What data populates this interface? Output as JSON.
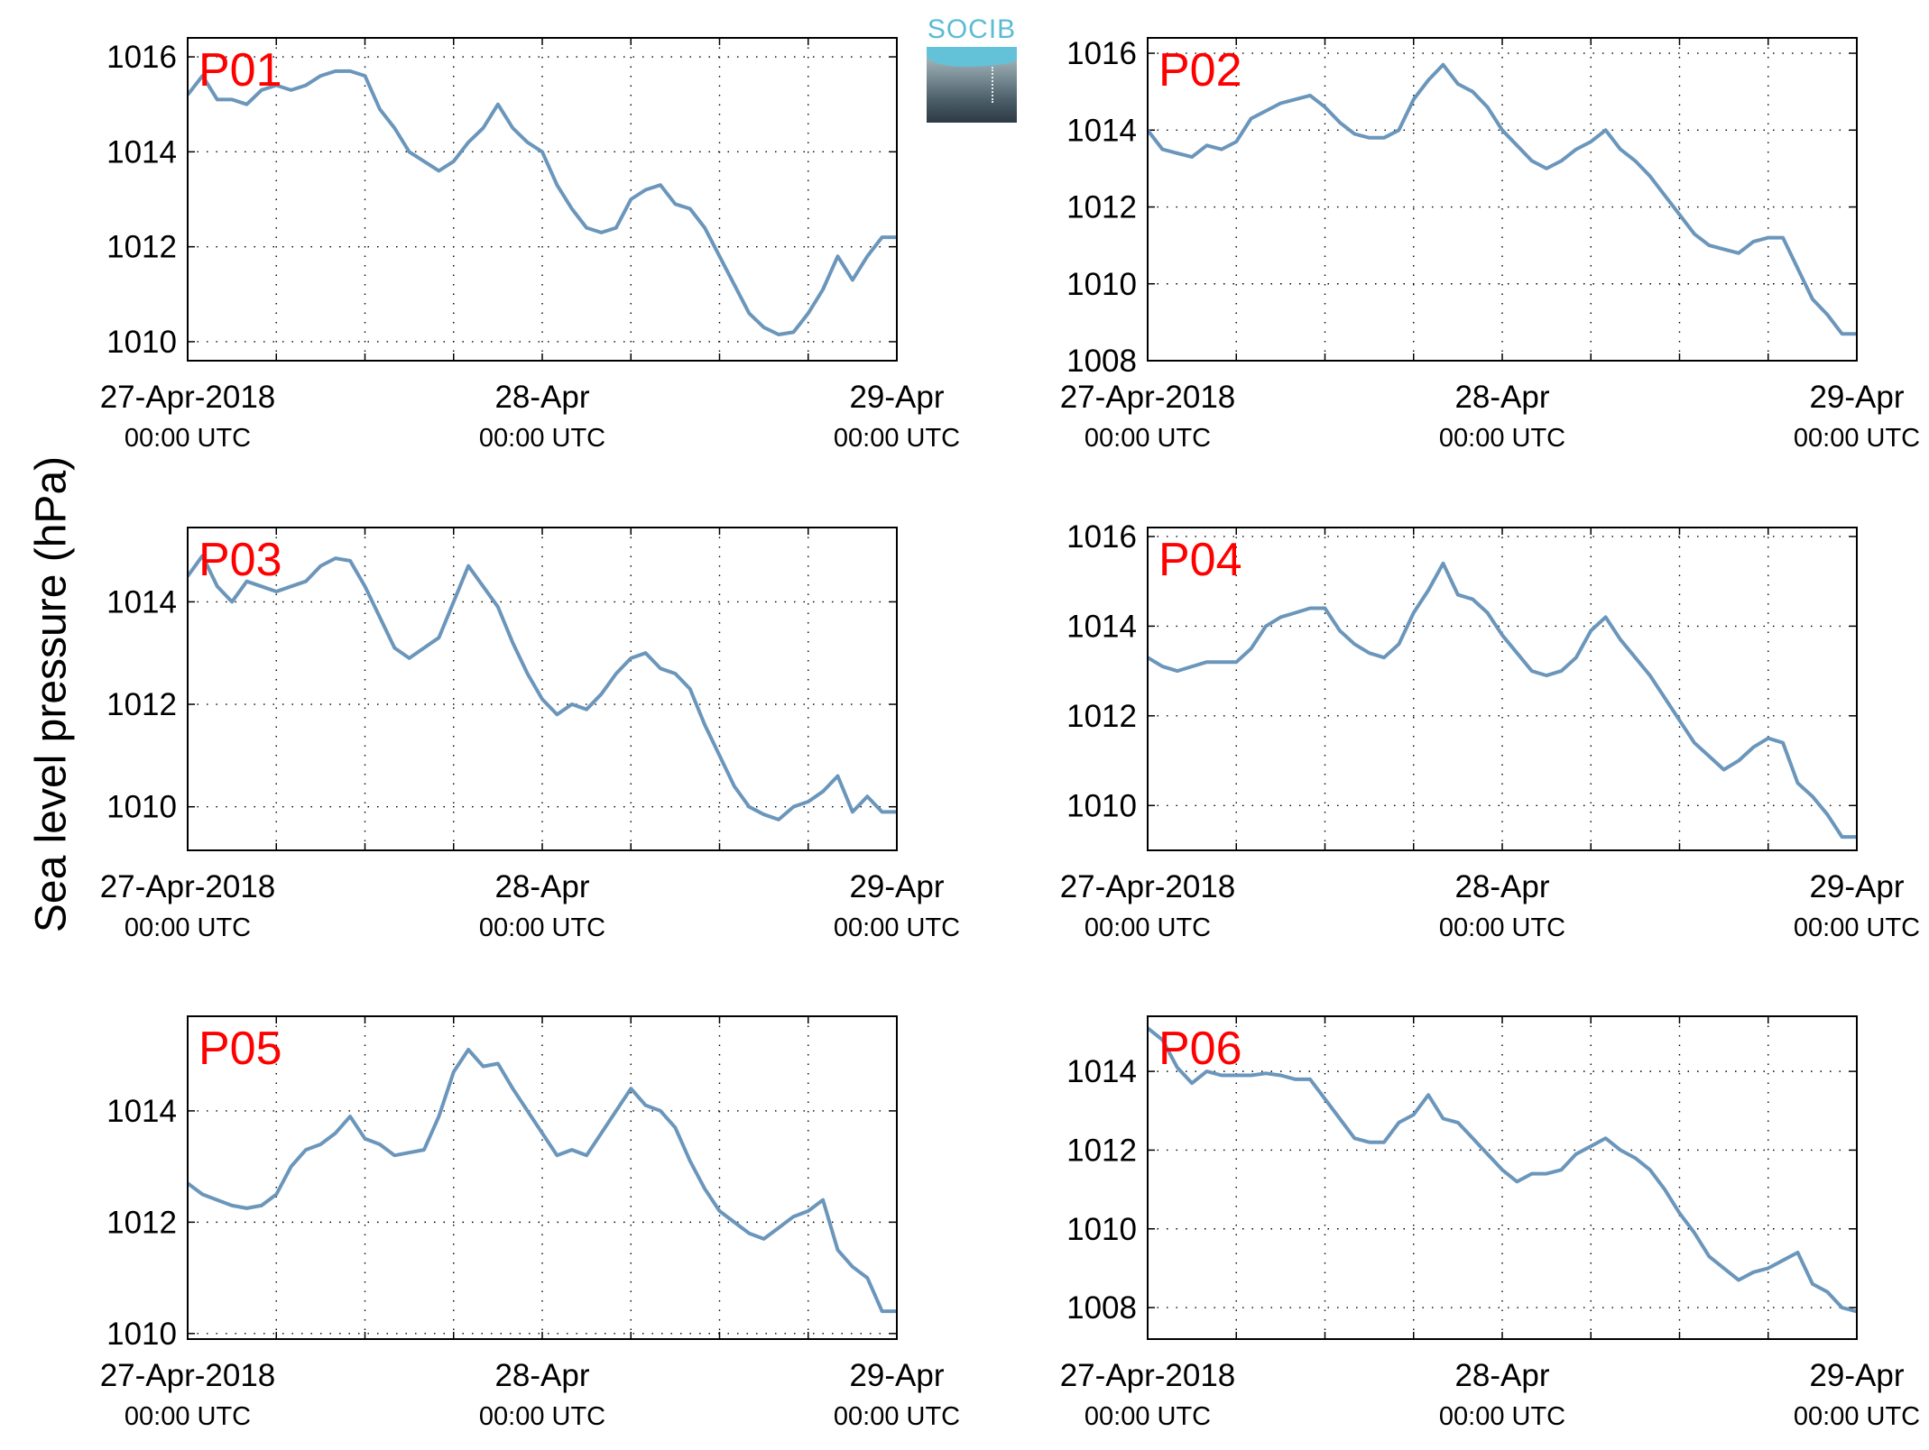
{
  "figure": {
    "ylabel": "Sea level pressure (hPa)",
    "logo_text": "SOCIB"
  },
  "chart_data": [
    {
      "type": "line",
      "label": "P01",
      "x_range": [
        "2018-04-27 00:00",
        "2018-04-29 00:00"
      ],
      "x_ticks": [
        {
          "pos": 0,
          "line1": "27-Apr-2018",
          "line2": "00:00 UTC"
        },
        {
          "pos": 24,
          "line1": "28-Apr",
          "line2": "00:00 UTC"
        },
        {
          "pos": 48,
          "line1": "29-Apr",
          "line2": "00:00 UTC"
        }
      ],
      "x_minor_step_hours": 6,
      "ylim": [
        1009.6,
        1016.4
      ],
      "yticks": [
        1010,
        1012,
        1014,
        1016
      ],
      "grid": true,
      "x_hours": [
        0,
        1,
        2,
        3,
        4,
        5,
        6,
        7,
        8,
        9,
        10,
        11,
        12,
        13,
        14,
        15,
        16,
        17,
        18,
        19,
        20,
        21,
        22,
        23,
        24,
        25,
        26,
        27,
        28,
        29,
        30,
        31,
        32,
        33,
        34,
        35,
        36,
        37,
        38,
        39,
        40,
        41,
        42,
        43,
        44,
        45,
        46,
        47,
        48
      ],
      "y": [
        1015.2,
        1015.6,
        1015.1,
        1015.1,
        1015.0,
        1015.3,
        1015.4,
        1015.3,
        1015.4,
        1015.6,
        1015.7,
        1015.7,
        1015.6,
        1014.9,
        1014.5,
        1014.0,
        1013.8,
        1013.6,
        1013.8,
        1014.2,
        1014.5,
        1015.0,
        1014.5,
        1014.2,
        1014.0,
        1013.3,
        1012.8,
        1012.4,
        1012.3,
        1012.4,
        1013.0,
        1013.2,
        1013.3,
        1012.9,
        1012.8,
        1012.4,
        1011.8,
        1011.2,
        1010.6,
        1010.3,
        1010.15,
        1010.2,
        1010.6,
        1011.1,
        1011.8,
        1011.3,
        1011.8,
        1012.2,
        1012.2
      ]
    },
    {
      "type": "line",
      "label": "P02",
      "x_range": [
        "2018-04-27 00:00",
        "2018-04-29 00:00"
      ],
      "x_ticks": [
        {
          "pos": 0,
          "line1": "27-Apr-2018",
          "line2": "00:00 UTC"
        },
        {
          "pos": 24,
          "line1": "28-Apr",
          "line2": "00:00 UTC"
        },
        {
          "pos": 48,
          "line1": "29-Apr",
          "line2": "00:00 UTC"
        }
      ],
      "x_minor_step_hours": 6,
      "ylim": [
        1008.0,
        1016.4
      ],
      "yticks": [
        1008,
        1010,
        1012,
        1014,
        1016
      ],
      "grid": true,
      "x_hours": [
        0,
        1,
        2,
        3,
        4,
        5,
        6,
        7,
        8,
        9,
        10,
        11,
        12,
        13,
        14,
        15,
        16,
        17,
        18,
        19,
        20,
        21,
        22,
        23,
        24,
        25,
        26,
        27,
        28,
        29,
        30,
        31,
        32,
        33,
        34,
        35,
        36,
        37,
        38,
        39,
        40,
        41,
        42,
        43,
        44,
        45,
        46,
        47,
        48
      ],
      "y": [
        1014.0,
        1013.5,
        1013.4,
        1013.3,
        1013.6,
        1013.5,
        1013.7,
        1014.3,
        1014.5,
        1014.7,
        1014.8,
        1014.9,
        1014.6,
        1014.2,
        1013.9,
        1013.8,
        1013.8,
        1014.0,
        1014.8,
        1015.3,
        1015.7,
        1015.2,
        1015.0,
        1014.6,
        1014.0,
        1013.6,
        1013.2,
        1013.0,
        1013.2,
        1013.5,
        1013.7,
        1014.0,
        1013.5,
        1013.2,
        1012.8,
        1012.3,
        1011.8,
        1011.3,
        1011.0,
        1010.9,
        1010.8,
        1011.1,
        1011.2,
        1011.2,
        1010.4,
        1009.6,
        1009.2,
        1008.7,
        1008.7
      ]
    },
    {
      "type": "line",
      "label": "P03",
      "x_range": [
        "2018-04-27 00:00",
        "2018-04-29 00:00"
      ],
      "x_ticks": [
        {
          "pos": 0,
          "line1": "27-Apr-2018",
          "line2": "00:00 UTC"
        },
        {
          "pos": 24,
          "line1": "28-Apr",
          "line2": "00:00 UTC"
        },
        {
          "pos": 48,
          "line1": "29-Apr",
          "line2": "00:00 UTC"
        }
      ],
      "x_minor_step_hours": 6,
      "ylim": [
        1009.15,
        1015.45
      ],
      "yticks": [
        1010,
        1012,
        1014
      ],
      "grid": true,
      "x_hours": [
        0,
        1,
        2,
        3,
        4,
        5,
        6,
        7,
        8,
        9,
        10,
        11,
        12,
        13,
        14,
        15,
        16,
        17,
        18,
        19,
        20,
        21,
        22,
        23,
        24,
        25,
        26,
        27,
        28,
        29,
        30,
        31,
        32,
        33,
        34,
        35,
        36,
        37,
        38,
        39,
        40,
        41,
        42,
        43,
        44,
        45,
        46,
        47,
        48
      ],
      "y": [
        1014.5,
        1014.9,
        1014.3,
        1014.0,
        1014.4,
        1014.3,
        1014.2,
        1014.3,
        1014.4,
        1014.7,
        1014.85,
        1014.8,
        1014.3,
        1013.7,
        1013.1,
        1012.9,
        1013.1,
        1013.3,
        1014.0,
        1014.7,
        1014.3,
        1013.9,
        1013.2,
        1012.6,
        1012.1,
        1011.8,
        1012.0,
        1011.9,
        1012.2,
        1012.6,
        1012.9,
        1013.0,
        1012.7,
        1012.6,
        1012.3,
        1011.6,
        1011.0,
        1010.4,
        1010.0,
        1009.85,
        1009.75,
        1010.0,
        1010.1,
        1010.3,
        1010.6,
        1009.9,
        1010.2,
        1009.9,
        1009.9
      ]
    },
    {
      "type": "line",
      "label": "P04",
      "x_range": [
        "2018-04-27 00:00",
        "2018-04-29 00:00"
      ],
      "x_ticks": [
        {
          "pos": 0,
          "line1": "27-Apr-2018",
          "line2": "00:00 UTC"
        },
        {
          "pos": 24,
          "line1": "28-Apr",
          "line2": "00:00 UTC"
        },
        {
          "pos": 48,
          "line1": "29-Apr",
          "line2": "00:00 UTC"
        }
      ],
      "x_minor_step_hours": 6,
      "ylim": [
        1009.0,
        1016.2
      ],
      "yticks": [
        1010,
        1012,
        1014,
        1016
      ],
      "grid": true,
      "x_hours": [
        0,
        1,
        2,
        3,
        4,
        5,
        6,
        7,
        8,
        9,
        10,
        11,
        12,
        13,
        14,
        15,
        16,
        17,
        18,
        19,
        20,
        21,
        22,
        23,
        24,
        25,
        26,
        27,
        28,
        29,
        30,
        31,
        32,
        33,
        34,
        35,
        36,
        37,
        38,
        39,
        40,
        41,
        42,
        43,
        44,
        45,
        46,
        47,
        48
      ],
      "y": [
        1013.3,
        1013.1,
        1013.0,
        1013.1,
        1013.2,
        1013.2,
        1013.2,
        1013.5,
        1014.0,
        1014.2,
        1014.3,
        1014.4,
        1014.4,
        1013.9,
        1013.6,
        1013.4,
        1013.3,
        1013.6,
        1014.3,
        1014.8,
        1015.4,
        1014.7,
        1014.6,
        1014.3,
        1013.8,
        1013.4,
        1013.0,
        1012.9,
        1013.0,
        1013.3,
        1013.9,
        1014.2,
        1013.7,
        1013.3,
        1012.9,
        1012.4,
        1011.9,
        1011.4,
        1011.1,
        1010.8,
        1011.0,
        1011.3,
        1011.5,
        1011.4,
        1010.5,
        1010.2,
        1009.8,
        1009.3,
        1009.3
      ]
    },
    {
      "type": "line",
      "label": "P05",
      "x_range": [
        "2018-04-27 00:00",
        "2018-04-29 00:00"
      ],
      "x_ticks": [
        {
          "pos": 0,
          "line1": "27-Apr-2018",
          "line2": "00:00 UTC"
        },
        {
          "pos": 24,
          "line1": "28-Apr",
          "line2": "00:00 UTC"
        },
        {
          "pos": 48,
          "line1": "29-Apr",
          "line2": "00:00 UTC"
        }
      ],
      "x_minor_step_hours": 6,
      "ylim": [
        1009.9,
        1015.7
      ],
      "yticks": [
        1010,
        1012,
        1014
      ],
      "grid": true,
      "x_hours": [
        0,
        1,
        2,
        3,
        4,
        5,
        6,
        7,
        8,
        9,
        10,
        11,
        12,
        13,
        14,
        15,
        16,
        17,
        18,
        19,
        20,
        21,
        22,
        23,
        24,
        25,
        26,
        27,
        28,
        29,
        30,
        31,
        32,
        33,
        34,
        35,
        36,
        37,
        38,
        39,
        40,
        41,
        42,
        43,
        44,
        45,
        46,
        47,
        48
      ],
      "y": [
        1012.7,
        1012.5,
        1012.4,
        1012.3,
        1012.25,
        1012.3,
        1012.5,
        1013.0,
        1013.3,
        1013.4,
        1013.6,
        1013.9,
        1013.5,
        1013.4,
        1013.2,
        1013.25,
        1013.3,
        1013.9,
        1014.7,
        1015.1,
        1014.8,
        1014.85,
        1014.4,
        1014.0,
        1013.6,
        1013.2,
        1013.3,
        1013.2,
        1013.6,
        1014.0,
        1014.4,
        1014.1,
        1014.0,
        1013.7,
        1013.1,
        1012.6,
        1012.2,
        1012.0,
        1011.8,
        1011.7,
        1011.9,
        1012.1,
        1012.2,
        1012.4,
        1011.5,
        1011.2,
        1011.0,
        1010.4,
        1010.4
      ]
    },
    {
      "type": "line",
      "label": "P06",
      "x_range": [
        "2018-04-27 00:00",
        "2018-04-29 00:00"
      ],
      "x_ticks": [
        {
          "pos": 0,
          "line1": "27-Apr-2018",
          "line2": "00:00 UTC"
        },
        {
          "pos": 24,
          "line1": "28-Apr",
          "line2": "00:00 UTC"
        },
        {
          "pos": 48,
          "line1": "29-Apr",
          "line2": "00:00 UTC"
        }
      ],
      "x_minor_step_hours": 6,
      "ylim": [
        1007.2,
        1015.4
      ],
      "yticks": [
        1008,
        1010,
        1012,
        1014
      ],
      "grid": true,
      "x_hours": [
        0,
        1,
        2,
        3,
        4,
        5,
        6,
        7,
        8,
        9,
        10,
        11,
        12,
        13,
        14,
        15,
        16,
        17,
        18,
        19,
        20,
        21,
        22,
        23,
        24,
        25,
        26,
        27,
        28,
        29,
        30,
        31,
        32,
        33,
        34,
        35,
        36,
        37,
        38,
        39,
        40,
        41,
        42,
        43,
        44,
        45,
        46,
        47,
        48
      ],
      "y": [
        1015.1,
        1014.8,
        1014.1,
        1013.7,
        1014.0,
        1013.9,
        1013.9,
        1013.9,
        1013.95,
        1013.9,
        1013.8,
        1013.8,
        1013.3,
        1012.8,
        1012.3,
        1012.2,
        1012.2,
        1012.7,
        1012.9,
        1013.4,
        1012.8,
        1012.7,
        1012.3,
        1011.9,
        1011.5,
        1011.2,
        1011.4,
        1011.4,
        1011.5,
        1011.9,
        1012.1,
        1012.3,
        1012.0,
        1011.8,
        1011.5,
        1011.0,
        1010.4,
        1009.9,
        1009.3,
        1009.0,
        1008.7,
        1008.9,
        1009.0,
        1009.2,
        1009.4,
        1008.6,
        1008.4,
        1008.0,
        1007.9
      ]
    }
  ],
  "style": {
    "line_color": "#6b96bb",
    "label_color": "#ff0000",
    "axis_color": "#000000"
  }
}
